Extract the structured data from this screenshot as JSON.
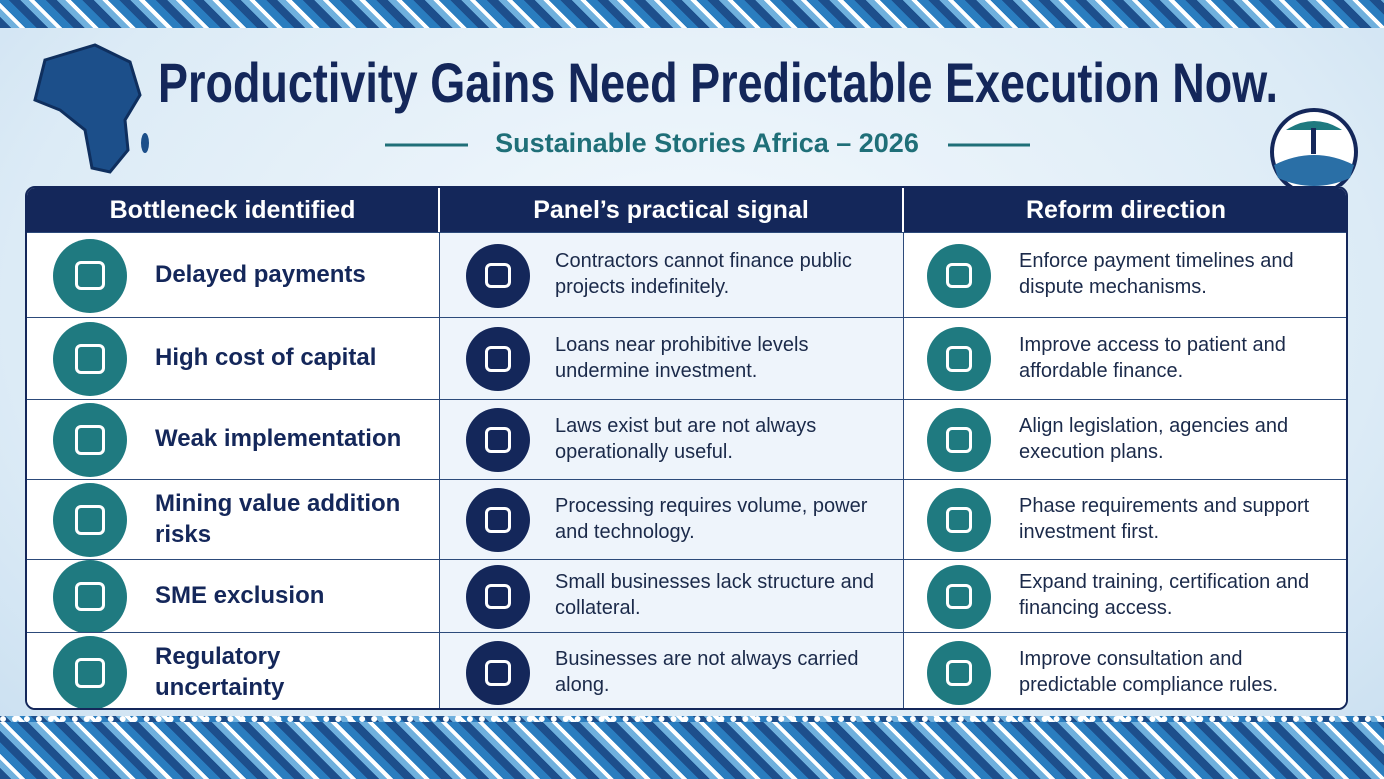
{
  "header": {
    "title": "Productivity Gains Need Predictable Execution Now.",
    "subtitle": "Sustainable Stories Africa – 2026"
  },
  "table": {
    "columns": [
      "Bottleneck identified",
      "Panel’s practical signal",
      "Reform direction"
    ],
    "rows": [
      [
        "Delayed payments",
        "Contractors cannot finance public projects indefinitely.",
        "Enforce payment timelines and dispute mechanisms."
      ],
      [
        "High cost of capital",
        "Loans near prohibitive levels undermine investment.",
        "Improve access to patient and affordable finance."
      ],
      [
        "Weak implementation",
        "Laws exist but are not always operationally useful.",
        "Align legislation, agencies and execution plans."
      ],
      [
        "Mining value addition risks",
        "Processing requires volume, power and technology.",
        "Phase requirements and support investment first."
      ],
      [
        "SME exclusion",
        "Small businesses lack structure and collateral.",
        "Expand training, certification and financing access."
      ],
      [
        "Regulatory uncertainty",
        "Businesses are not always carried along.",
        "Improve consultation and predictable compliance rules."
      ]
    ]
  }
}
